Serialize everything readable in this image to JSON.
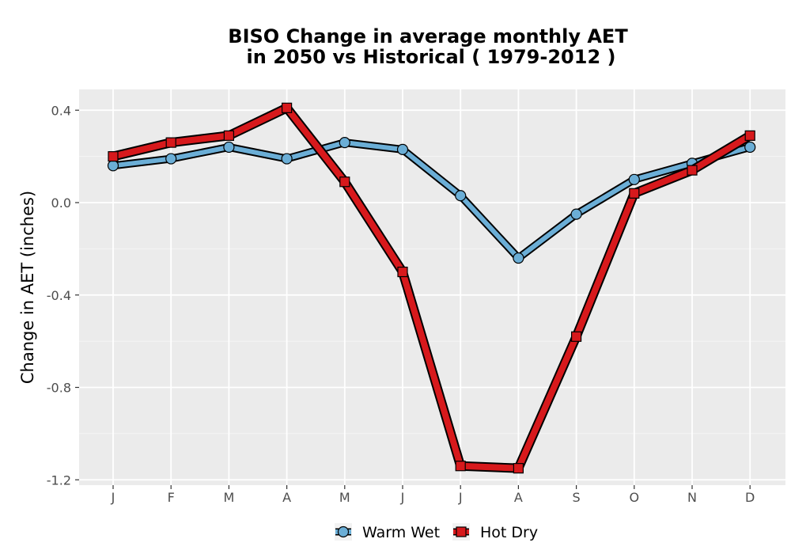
{
  "chart_data": {
    "type": "line",
    "title_line1": "BISO  Change in average monthly AET",
    "title_line2": "in 2050 vs Historical ( 1979-2012 )",
    "xlabel": "",
    "ylabel": "Change in AET (inches)",
    "categories": [
      "J",
      "F",
      "M",
      "A",
      "M",
      "J",
      "J",
      "A",
      "S",
      "O",
      "N",
      "D"
    ],
    "ylim": [
      -1.22,
      0.49
    ],
    "yticks": [
      0.4,
      0.0,
      -0.4,
      -0.8,
      -1.2
    ],
    "ytick_labels": [
      "0.4",
      "0.0",
      "-0.4",
      "-0.8",
      "-1.2"
    ],
    "grid": true,
    "legend_position": "bottom",
    "series": [
      {
        "name": "Warm Wet",
        "color": "#6baed6",
        "marker": "circle",
        "values": [
          0.16,
          0.19,
          0.24,
          0.19,
          0.26,
          0.23,
          0.03,
          -0.24,
          -0.05,
          0.1,
          0.17,
          0.24
        ]
      },
      {
        "name": "Hot Dry",
        "color": "#d7191c",
        "marker": "square",
        "values": [
          0.2,
          0.26,
          0.29,
          0.41,
          0.09,
          -0.3,
          -1.14,
          -1.15,
          -0.58,
          0.04,
          0.14,
          0.29
        ]
      }
    ]
  }
}
